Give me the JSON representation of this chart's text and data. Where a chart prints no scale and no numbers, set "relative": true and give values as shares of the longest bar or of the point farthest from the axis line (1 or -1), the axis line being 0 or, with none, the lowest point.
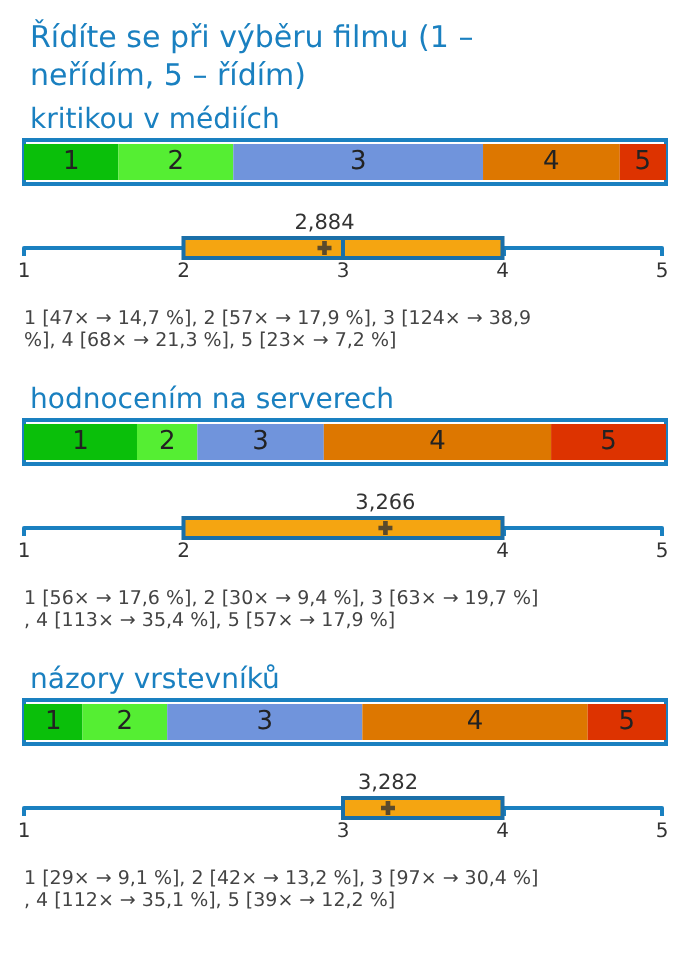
{
  "chart_data": [
    {
      "type": "bar",
      "title": "Řídíte se při výběru filmu (1 – neřídím, 5 – řídím)",
      "subtitle": "kritikou v médiích",
      "orientation": "horizontal",
      "stacked": true,
      "relative": true,
      "categories": [
        null
      ],
      "series": [
        {
          "name": "1",
          "color": "#0abf0a",
          "values": [
            0.147
          ]
        },
        {
          "name": "2",
          "color": "#55ee33",
          "values": [
            0.179
          ]
        },
        {
          "name": "3",
          "color": "#7094dc",
          "values": [
            0.389
          ]
        },
        {
          "name": "4",
          "color": "#dd7700",
          "values": [
            0.213
          ]
        },
        {
          "name": "5",
          "color": "#dd3300",
          "values": [
            0.072
          ]
        }
      ]
    },
    {
      "type": "box",
      "orientation": "horizontal",
      "categories": [
        null
      ],
      "xlim": [
        1,
        5
      ],
      "xticks": [
        1,
        2,
        3,
        4,
        5
      ],
      "series": [
        {
          "color": "#f5a511",
          "boxes": [
            {
              "low": 2,
              "q1": 2,
              "median": 3,
              "q3": 4,
              "high": 4,
              "mean": 2.884
            }
          ]
        }
      ],
      "annotations": [
        "2,884",
        "1 [47× → 14,7 %], 2 [57× → 17,9 %], 3 [124× → 38,9 %], 4 [68× → 21,3 %], 5 [23× → 7,2 %]"
      ]
    },
    {
      "type": "bar",
      "title": "hodnocením na serverech",
      "orientation": "horizontal",
      "stacked": true,
      "relative": true,
      "categories": [
        null
      ],
      "series": [
        {
          "name": "1",
          "color": "#0abf0a",
          "values": [
            0.176
          ]
        },
        {
          "name": "2",
          "color": "#55ee33",
          "values": [
            0.094
          ]
        },
        {
          "name": "3",
          "color": "#7094dc",
          "values": [
            0.197
          ]
        },
        {
          "name": "4",
          "color": "#dd7700",
          "values": [
            0.354
          ]
        },
        {
          "name": "5",
          "color": "#dd3300",
          "values": [
            0.179
          ]
        }
      ]
    },
    {
      "type": "box",
      "orientation": "horizontal",
      "categories": [
        null
      ],
      "xlim": [
        1,
        5
      ],
      "xticks": [
        1,
        2,
        4,
        5
      ],
      "series": [
        {
          "color": "#f5a511",
          "boxes": [
            {
              "low": 2,
              "q1": 2,
              "median": 4,
              "q3": 4,
              "high": 4,
              "mean": 3.266
            }
          ]
        }
      ],
      "annotations": [
        "3,266",
        "1 [56× → 17,6 %], 2 [30× → 9,4 %], 3 [63× → 19,7 %], 4 [113× → 35,4 %], 5 [57× → 17,9 %]"
      ]
    },
    {
      "type": "bar",
      "title": "názory vrstevníků",
      "orientation": "horizontal",
      "stacked": true,
      "relative": true,
      "categories": [
        null
      ],
      "series": [
        {
          "name": "1",
          "color": "#0abf0a",
          "values": [
            0.091
          ]
        },
        {
          "name": "2",
          "color": "#55ee33",
          "values": [
            0.132
          ]
        },
        {
          "name": "3",
          "color": "#7094dc",
          "values": [
            0.304
          ]
        },
        {
          "name": "4",
          "color": "#dd7700",
          "values": [
            0.351
          ]
        },
        {
          "name": "5",
          "color": "#dd3300",
          "values": [
            0.122
          ]
        }
      ]
    },
    {
      "type": "box",
      "orientation": "horizontal",
      "categories": [
        null
      ],
      "xlim": [
        1,
        5
      ],
      "xticks": [
        1,
        3,
        4,
        5
      ],
      "series": [
        {
          "color": "#f5a511",
          "boxes": [
            {
              "low": 3,
              "q1": 3,
              "median": 3,
              "q3": 4,
              "high": 4,
              "mean": 3.282
            }
          ]
        }
      ],
      "annotations": [
        "3,282",
        "1 [29× → 9,1 %], 2 [42× → 13,2 %], 3 [97× → 30,4 %], 4 [112× → 35,1 %], 5 [39× → 12,2 %]"
      ]
    }
  ]
}
